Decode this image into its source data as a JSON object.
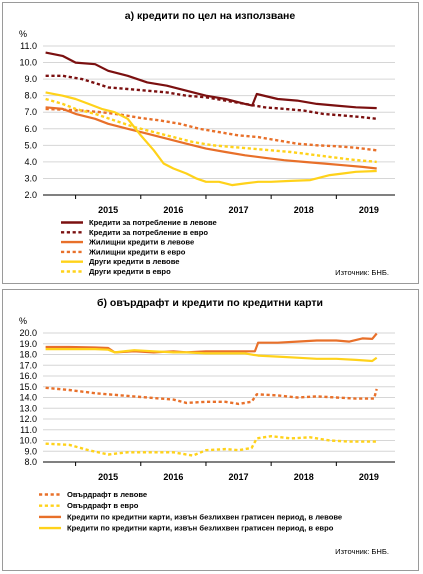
{
  "chart_data": [
    {
      "type": "line",
      "title": "а) кредити по цел на използване",
      "unit": "%",
      "ylim": [
        2.0,
        11.0
      ],
      "yticks": [
        "11.0",
        "10.0",
        "9.0",
        "8.0",
        "7.0",
        "6.0",
        "5.0",
        "4.0",
        "3.0",
        "2.0"
      ],
      "xlabels": [
        "2015",
        "2016",
        "2017",
        "2018",
        "2019"
      ],
      "x_range": [
        2014.5,
        2019.9
      ],
      "grid": true,
      "legend_position": "bottom-left",
      "source": "Източник: БНБ.",
      "series": [
        {
          "name": "Кредити за потребление в левове",
          "color": "#7b1010",
          "dash": "solid",
          "points": [
            [
              2014.54,
              10.6
            ],
            [
              2014.8,
              10.4
            ],
            [
              2015.0,
              10.0
            ],
            [
              2015.3,
              9.9
            ],
            [
              2015.5,
              9.5
            ],
            [
              2015.8,
              9.2
            ],
            [
              2016.1,
              8.8
            ],
            [
              2016.4,
              8.6
            ],
            [
              2016.7,
              8.3
            ],
            [
              2017.0,
              8.0
            ],
            [
              2017.3,
              7.8
            ],
            [
              2017.6,
              7.5
            ],
            [
              2017.71,
              7.4
            ],
            [
              2017.78,
              8.1
            ],
            [
              2018.1,
              7.8
            ],
            [
              2018.4,
              7.7
            ],
            [
              2018.7,
              7.5
            ],
            [
              2019.0,
              7.4
            ],
            [
              2019.3,
              7.3
            ],
            [
              2019.62,
              7.25
            ]
          ]
        },
        {
          "name": "Кредити за потребление в евро",
          "color": "#7b1010",
          "dash": "dotted",
          "points": [
            [
              2014.54,
              9.2
            ],
            [
              2014.8,
              9.2
            ],
            [
              2015.1,
              9.0
            ],
            [
              2015.35,
              8.7
            ],
            [
              2015.5,
              8.5
            ],
            [
              2015.8,
              8.4
            ],
            [
              2016.1,
              8.3
            ],
            [
              2016.4,
              8.2
            ],
            [
              2016.7,
              8.0
            ],
            [
              2017.0,
              7.9
            ],
            [
              2017.3,
              7.7
            ],
            [
              2017.6,
              7.5
            ],
            [
              2017.9,
              7.3
            ],
            [
              2018.2,
              7.2
            ],
            [
              2018.5,
              7.1
            ],
            [
              2018.8,
              6.9
            ],
            [
              2019.1,
              6.8
            ],
            [
              2019.4,
              6.7
            ],
            [
              2019.62,
              6.6
            ]
          ]
        },
        {
          "name": "Жилищни кредити в левове",
          "color": "#e8702a",
          "dash": "solid",
          "points": [
            [
              2014.54,
              7.3
            ],
            [
              2014.8,
              7.2
            ],
            [
              2015.0,
              6.9
            ],
            [
              2015.3,
              6.6
            ],
            [
              2015.5,
              6.3
            ],
            [
              2015.8,
              6.0
            ],
            [
              2016.1,
              5.7
            ],
            [
              2016.4,
              5.4
            ],
            [
              2016.7,
              5.1
            ],
            [
              2017.0,
              4.8
            ],
            [
              2017.3,
              4.6
            ],
            [
              2017.6,
              4.4
            ],
            [
              2017.9,
              4.25
            ],
            [
              2018.2,
              4.1
            ],
            [
              2018.5,
              4.0
            ],
            [
              2018.8,
              3.9
            ],
            [
              2019.1,
              3.8
            ],
            [
              2019.4,
              3.7
            ],
            [
              2019.62,
              3.6
            ]
          ]
        },
        {
          "name": "Жилищни кредити в евро",
          "color": "#e8702a",
          "dash": "dotted",
          "points": [
            [
              2014.54,
              7.2
            ],
            [
              2014.8,
              7.15
            ],
            [
              2015.1,
              7.1
            ],
            [
              2015.4,
              7.0
            ],
            [
              2015.7,
              6.85
            ],
            [
              2016.0,
              6.65
            ],
            [
              2016.3,
              6.5
            ],
            [
              2016.6,
              6.3
            ],
            [
              2016.9,
              6.0
            ],
            [
              2017.2,
              5.8
            ],
            [
              2017.5,
              5.6
            ],
            [
              2017.8,
              5.5
            ],
            [
              2018.1,
              5.3
            ],
            [
              2018.4,
              5.1
            ],
            [
              2018.7,
              5.0
            ],
            [
              2019.0,
              4.95
            ],
            [
              2019.3,
              4.85
            ],
            [
              2019.62,
              4.7
            ]
          ]
        },
        {
          "name": "Други кредити в левове",
          "color": "#ffd21a",
          "dash": "solid",
          "points": [
            [
              2014.54,
              8.2
            ],
            [
              2014.8,
              8.0
            ],
            [
              2015.0,
              7.8
            ],
            [
              2015.2,
              7.5
            ],
            [
              2015.4,
              7.2
            ],
            [
              2015.6,
              7.0
            ],
            [
              2015.8,
              6.6
            ],
            [
              2016.0,
              5.6
            ],
            [
              2016.2,
              4.7
            ],
            [
              2016.35,
              3.9
            ],
            [
              2016.5,
              3.6
            ],
            [
              2016.7,
              3.3
            ],
            [
              2016.85,
              3.0
            ],
            [
              2017.0,
              2.8
            ],
            [
              2017.2,
              2.8
            ],
            [
              2017.4,
              2.6
            ],
            [
              2017.6,
              2.7
            ],
            [
              2017.8,
              2.8
            ],
            [
              2018.0,
              2.8
            ],
            [
              2018.3,
              2.85
            ],
            [
              2018.6,
              2.9
            ],
            [
              2018.9,
              3.2
            ],
            [
              2019.1,
              3.3
            ],
            [
              2019.3,
              3.4
            ],
            [
              2019.62,
              3.45
            ]
          ]
        },
        {
          "name": "Други кредити в евро",
          "color": "#ffd21a",
          "dash": "dotted",
          "points": [
            [
              2014.54,
              7.8
            ],
            [
              2014.8,
              7.5
            ],
            [
              2015.0,
              7.2
            ],
            [
              2015.3,
              6.9
            ],
            [
              2015.6,
              6.5
            ],
            [
              2015.9,
              6.1
            ],
            [
              2016.2,
              5.8
            ],
            [
              2016.5,
              5.5
            ],
            [
              2016.8,
              5.2
            ],
            [
              2017.1,
              5.0
            ],
            [
              2017.4,
              4.9
            ],
            [
              2017.7,
              4.8
            ],
            [
              2018.0,
              4.7
            ],
            [
              2018.3,
              4.6
            ],
            [
              2018.6,
              4.45
            ],
            [
              2018.9,
              4.3
            ],
            [
              2019.2,
              4.15
            ],
            [
              2019.62,
              4.0
            ]
          ]
        }
      ]
    },
    {
      "type": "line",
      "title": "б) овърдрафт и кредити по кредитни карти",
      "unit": "%",
      "ylim": [
        8.0,
        20.0
      ],
      "yticks": [
        "20.0",
        "19.0",
        "18.0",
        "17.0",
        "16.0",
        "15.0",
        "14.0",
        "13.0",
        "12.0",
        "11.0",
        "10.0",
        "9.0",
        "8.0"
      ],
      "xlabels": [
        "2015",
        "2016",
        "2017",
        "2018",
        "2019"
      ],
      "x_range": [
        2014.5,
        2019.9
      ],
      "grid": true,
      "legend_position": "bottom-left",
      "source": "Източник: БНБ.",
      "series": [
        {
          "name": "Овърдрафт в левове",
          "color": "#e8702a",
          "dash": "dotted",
          "points": [
            [
              2014.54,
              14.9
            ],
            [
              2014.9,
              14.7
            ],
            [
              2015.3,
              14.4
            ],
            [
              2015.7,
              14.2
            ],
            [
              2016.1,
              14.0
            ],
            [
              2016.5,
              13.8
            ],
            [
              2016.7,
              13.5
            ],
            [
              2017.0,
              13.6
            ],
            [
              2017.3,
              13.6
            ],
            [
              2017.5,
              13.4
            ],
            [
              2017.7,
              13.6
            ],
            [
              2017.78,
              14.3
            ],
            [
              2018.1,
              14.2
            ],
            [
              2018.4,
              14.0
            ],
            [
              2018.7,
              14.1
            ],
            [
              2019.0,
              14.0
            ],
            [
              2019.3,
              13.9
            ],
            [
              2019.58,
              13.9
            ],
            [
              2019.62,
              14.8
            ]
          ]
        },
        {
          "name": "Овърдрафт в евро",
          "color": "#ffd21a",
          "dash": "dotted",
          "points": [
            [
              2014.54,
              9.7
            ],
            [
              2014.9,
              9.6
            ],
            [
              2015.2,
              9.1
            ],
            [
              2015.5,
              8.7
            ],
            [
              2015.8,
              8.9
            ],
            [
              2016.2,
              8.9
            ],
            [
              2016.5,
              8.9
            ],
            [
              2016.8,
              8.6
            ],
            [
              2017.0,
              9.1
            ],
            [
              2017.3,
              9.2
            ],
            [
              2017.5,
              9.1
            ],
            [
              2017.7,
              9.3
            ],
            [
              2017.78,
              10.2
            ],
            [
              2018.0,
              10.4
            ],
            [
              2018.3,
              10.2
            ],
            [
              2018.6,
              10.3
            ],
            [
              2018.9,
              10.0
            ],
            [
              2019.2,
              9.9
            ],
            [
              2019.62,
              9.9
            ]
          ]
        },
        {
          "name": "Кредити по кредитни карти, извън безлихвен гратисен период, в левове",
          "color": "#e8702a",
          "dash": "solid",
          "points": [
            [
              2014.54,
              18.7
            ],
            [
              2014.9,
              18.7
            ],
            [
              2015.3,
              18.65
            ],
            [
              2015.5,
              18.6
            ],
            [
              2015.6,
              18.2
            ],
            [
              2015.9,
              18.3
            ],
            [
              2016.2,
              18.2
            ],
            [
              2016.5,
              18.3
            ],
            [
              2016.7,
              18.2
            ],
            [
              2017.0,
              18.3
            ],
            [
              2017.3,
              18.3
            ],
            [
              2017.6,
              18.3
            ],
            [
              2017.75,
              18.3
            ],
            [
              2017.8,
              19.1
            ],
            [
              2018.1,
              19.1
            ],
            [
              2018.4,
              19.2
            ],
            [
              2018.7,
              19.3
            ],
            [
              2019.0,
              19.3
            ],
            [
              2019.2,
              19.2
            ],
            [
              2019.4,
              19.5
            ],
            [
              2019.55,
              19.45
            ],
            [
              2019.62,
              19.95
            ]
          ]
        },
        {
          "name": "Кредити по кредитни карти, извън безлихвен гратисен период, в евро",
          "color": "#ffd21a",
          "dash": "solid",
          "points": [
            [
              2014.54,
              18.5
            ],
            [
              2014.9,
              18.5
            ],
            [
              2015.3,
              18.5
            ],
            [
              2015.5,
              18.45
            ],
            [
              2015.6,
              18.2
            ],
            [
              2015.9,
              18.4
            ],
            [
              2016.2,
              18.3
            ],
            [
              2016.5,
              18.2
            ],
            [
              2016.7,
              18.2
            ],
            [
              2017.0,
              18.1
            ],
            [
              2017.3,
              18.1
            ],
            [
              2017.6,
              18.1
            ],
            [
              2017.8,
              17.9
            ],
            [
              2018.1,
              17.8
            ],
            [
              2018.4,
              17.7
            ],
            [
              2018.7,
              17.6
            ],
            [
              2019.0,
              17.6
            ],
            [
              2019.3,
              17.5
            ],
            [
              2019.55,
              17.4
            ],
            [
              2019.62,
              17.7
            ]
          ]
        }
      ]
    }
  ]
}
